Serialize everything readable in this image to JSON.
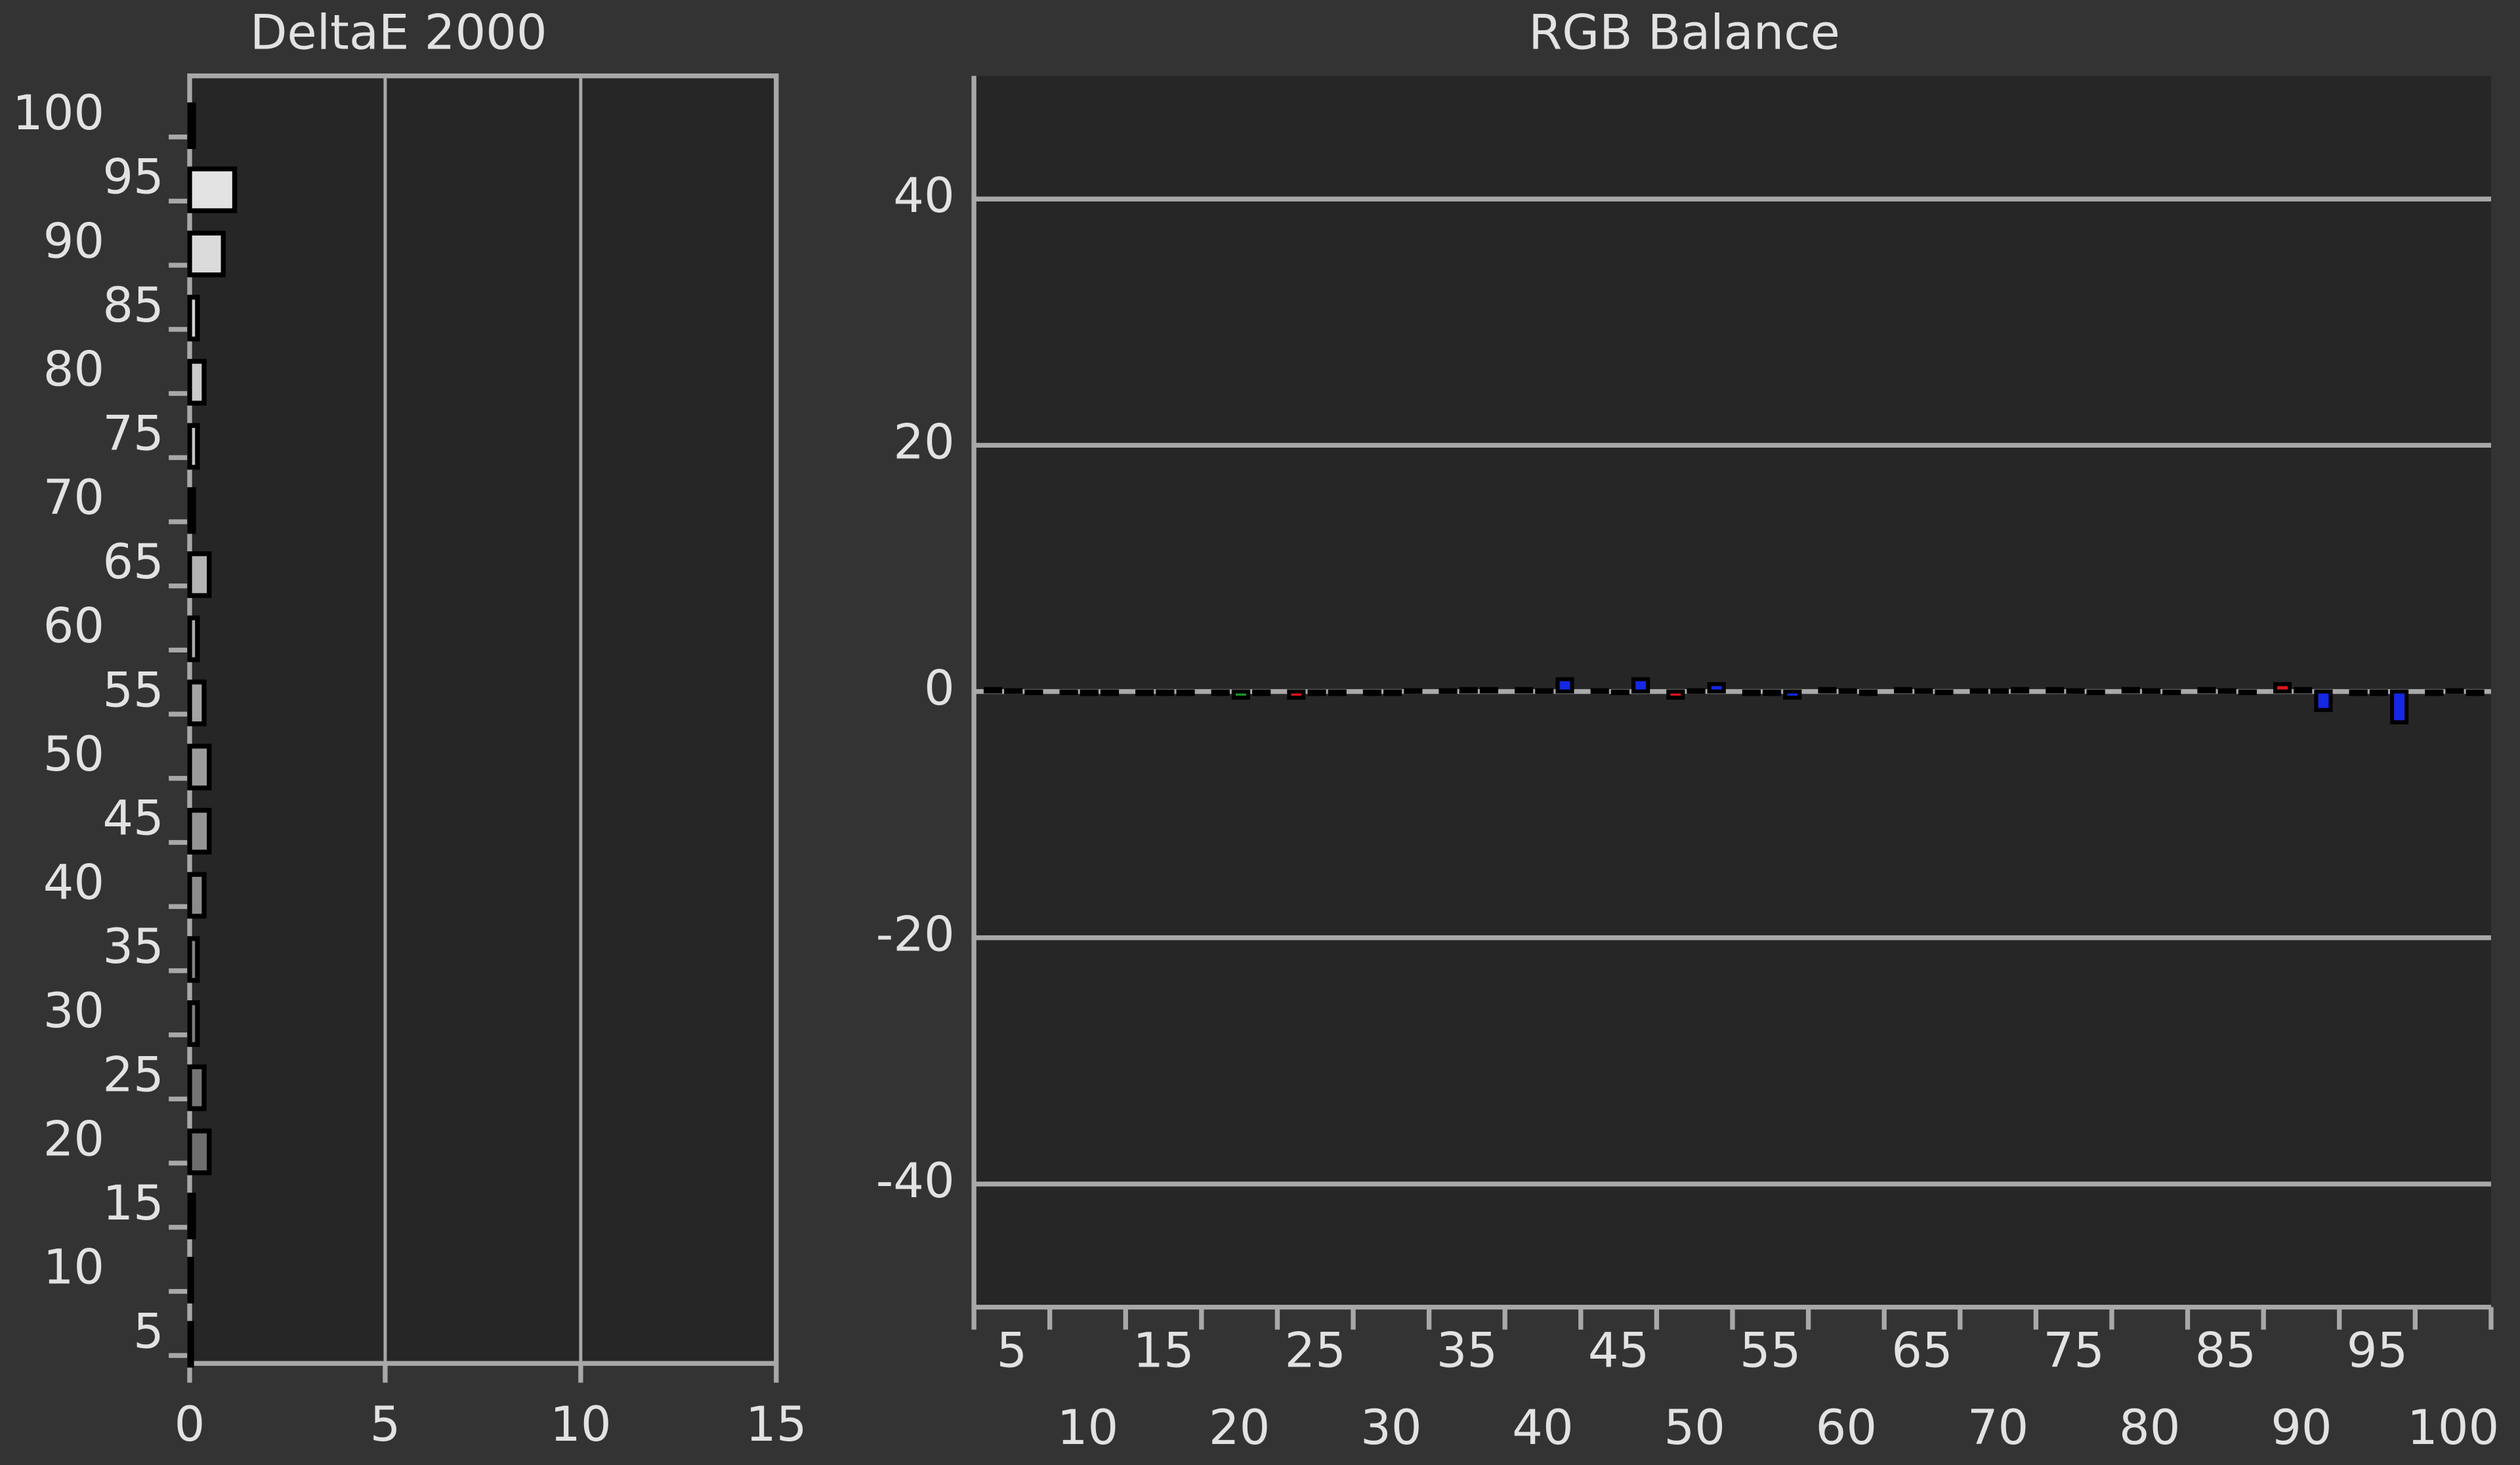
{
  "chart_data": [
    {
      "type": "barh",
      "title": "DeltaE 2000",
      "categories": [
        "100",
        "95",
        "90",
        "85",
        "80",
        "75",
        "70",
        "65",
        "60",
        "55",
        "50",
        "45",
        "40",
        "35",
        "30",
        "25",
        "20",
        "15",
        "10",
        "5"
      ],
      "values": [
        0.1,
        1.15,
        0.86,
        0.2,
        0.37,
        0.2,
        0.1,
        0.5,
        0.2,
        0.37,
        0.5,
        0.5,
        0.37,
        0.2,
        0.2,
        0.37,
        0.5,
        0.1,
        0.05,
        0.05
      ],
      "xlim": [
        0,
        15
      ],
      "xticks": [
        0,
        5,
        10,
        15
      ],
      "grid": true
    },
    {
      "type": "bar",
      "title": "RGB Balance",
      "categories": [
        "5",
        "10",
        "15",
        "20",
        "25",
        "30",
        "35",
        "40",
        "45",
        "50",
        "55",
        "60",
        "65",
        "70",
        "75",
        "80",
        "85",
        "90",
        "95",
        "100"
      ],
      "series": [
        {
          "color": "#e0141e",
          "values": [
            0.2,
            -0.1,
            -0.2,
            -0.2,
            -0.5,
            -0.2,
            0.1,
            0.2,
            0.1,
            -0.5,
            -0.2,
            0.2,
            0.2,
            0.1,
            0.2,
            0.2,
            0.2,
            0.6,
            -0.2,
            -0.2
          ]
        },
        {
          "color": "#1a9a2a",
          "values": [
            0.1,
            -0.2,
            -0.2,
            -0.5,
            -0.2,
            -0.2,
            0.2,
            0.1,
            -0.1,
            0.1,
            -0.2,
            0.1,
            0.1,
            0.1,
            0.1,
            0.1,
            0.1,
            0.2,
            -0.2,
            0.1
          ]
        },
        {
          "color": "#1428e6",
          "values": [
            -0.1,
            -0.2,
            -0.2,
            -0.2,
            -0.2,
            0.1,
            0.2,
            1.0,
            1.0,
            0.6,
            -0.5,
            -0.2,
            -0.1,
            0.2,
            -0.1,
            -0.1,
            -0.1,
            -1.5,
            -2.5,
            -0.2
          ]
        }
      ],
      "ylim": [
        -50,
        50
      ],
      "yticks": [
        -40,
        -20,
        0,
        20,
        40
      ],
      "grid": true
    }
  ]
}
